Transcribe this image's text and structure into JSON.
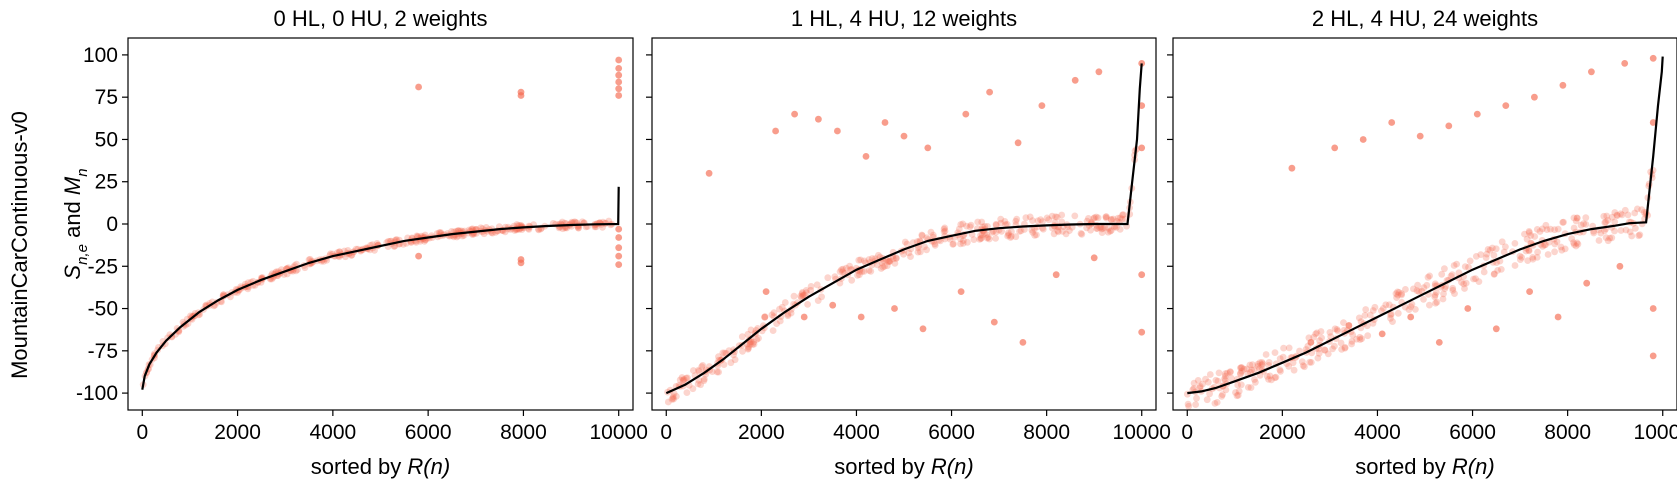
{
  "figure": {
    "row_label": "MountainCarContinuous-v0",
    "ylabel_parts": {
      "s": "S",
      "s_sub": "n,e",
      "and": " and ",
      "m": "M",
      "m_sub": "n"
    },
    "xlabel_prefix": "sorted by ",
    "xlabel_var": "R(n)"
  },
  "chart_data": [
    {
      "type": "scatter",
      "title": "0 HL, 0 HU, 2 weights",
      "xlim": [
        -300,
        10300
      ],
      "ylim": [
        -110,
        110
      ],
      "xticks": [
        0,
        2000,
        4000,
        6000,
        8000,
        10000
      ],
      "yticks": [
        -100,
        -75,
        -50,
        -25,
        0,
        25,
        50,
        75,
        100
      ],
      "xtick_labels": [
        "0",
        "2000",
        "4000",
        "6000",
        "8000",
        "10000"
      ],
      "ytick_labels": [
        "-100",
        "-75",
        "-50",
        "-25",
        "0",
        "25",
        "50",
        "75",
        "100"
      ],
      "series": [
        {
          "kind": "points",
          "color": "#f4694f",
          "outliers": [
            [
              5800,
              81
            ],
            [
              5800,
              -19
            ],
            [
              7950,
              78
            ],
            [
              7950,
              76
            ],
            [
              7950,
              -21
            ],
            [
              7950,
              -23
            ],
            [
              10000,
              97
            ],
            [
              10000,
              92
            ],
            [
              10000,
              88
            ],
            [
              10000,
              84
            ],
            [
              10000,
              80
            ],
            [
              10000,
              76
            ],
            [
              10000,
              -3
            ],
            [
              10000,
              -8
            ],
            [
              10000,
              -14
            ],
            [
              10000,
              -19
            ],
            [
              10000,
              -24
            ]
          ]
        },
        {
          "kind": "line",
          "color": "#000000",
          "points": [
            [
              0,
              -98
            ],
            [
              50,
              -90
            ],
            [
              150,
              -83
            ],
            [
              300,
              -76
            ],
            [
              500,
              -69
            ],
            [
              800,
              -61
            ],
            [
              1200,
              -52
            ],
            [
              1600,
              -45
            ],
            [
              2000,
              -39
            ],
            [
              2500,
              -33
            ],
            [
              3000,
              -28
            ],
            [
              3500,
              -23
            ],
            [
              4000,
              -19
            ],
            [
              4500,
              -16
            ],
            [
              5000,
              -13
            ],
            [
              5500,
              -10
            ],
            [
              6000,
              -8
            ],
            [
              6500,
              -6
            ],
            [
              7000,
              -4.5
            ],
            [
              7500,
              -3
            ],
            [
              8000,
              -2
            ],
            [
              8500,
              -1.2
            ],
            [
              9000,
              -0.6
            ],
            [
              9500,
              -0.2
            ],
            [
              9990,
              0
            ],
            [
              10000,
              22
            ]
          ]
        }
      ]
    },
    {
      "type": "scatter",
      "title": "1 HL, 4 HU, 12 weights",
      "xlim": [
        -300,
        10300
      ],
      "ylim": [
        -110,
        110
      ],
      "xticks": [
        0,
        2000,
        4000,
        6000,
        8000,
        10000
      ],
      "yticks": [
        -100,
        -75,
        -50,
        -25,
        0,
        25,
        50,
        75,
        100
      ],
      "xtick_labels": [
        "0",
        "2000",
        "4000",
        "6000",
        "8000",
        "10000"
      ],
      "ytick_labels": [
        "",
        "",
        "",
        "",
        "",
        "",
        "",
        "",
        ""
      ],
      "series": [
        {
          "kind": "points",
          "color": "#f4694f",
          "outliers": [
            [
              900,
              30
            ],
            [
              2300,
              55
            ],
            [
              2700,
              65
            ],
            [
              3200,
              62
            ],
            [
              3600,
              55
            ],
            [
              4200,
              40
            ],
            [
              4600,
              60
            ],
            [
              5000,
              52
            ],
            [
              5500,
              45
            ],
            [
              6300,
              65
            ],
            [
              6800,
              78
            ],
            [
              7400,
              48
            ],
            [
              7900,
              70
            ],
            [
              8600,
              85
            ],
            [
              9100,
              90
            ],
            [
              2100,
              -40
            ],
            [
              2900,
              -55
            ],
            [
              3500,
              -48
            ],
            [
              4100,
              -55
            ],
            [
              4800,
              -50
            ],
            [
              5400,
              -62
            ],
            [
              6200,
              -40
            ],
            [
              6900,
              -58
            ],
            [
              7500,
              -70
            ],
            [
              8200,
              -30
            ],
            [
              9000,
              -20
            ],
            [
              10000,
              95
            ],
            [
              10000,
              70
            ],
            [
              10000,
              45
            ],
            [
              10000,
              -30
            ],
            [
              10000,
              -64
            ]
          ]
        },
        {
          "kind": "line",
          "color": "#000000",
          "points": [
            [
              0,
              -100
            ],
            [
              400,
              -95
            ],
            [
              800,
              -88
            ],
            [
              1200,
              -80
            ],
            [
              1600,
              -71
            ],
            [
              2000,
              -62
            ],
            [
              2500,
              -52
            ],
            [
              3000,
              -43
            ],
            [
              3500,
              -35
            ],
            [
              4000,
              -27
            ],
            [
              4500,
              -21
            ],
            [
              5000,
              -15
            ],
            [
              5500,
              -10
            ],
            [
              6000,
              -7
            ],
            [
              6500,
              -4
            ],
            [
              7000,
              -2.5
            ],
            [
              7500,
              -1.5
            ],
            [
              8000,
              -0.8
            ],
            [
              8500,
              -0.3
            ],
            [
              9000,
              0
            ],
            [
              9700,
              0
            ],
            [
              9800,
              25
            ],
            [
              9900,
              50
            ],
            [
              9960,
              80
            ],
            [
              10000,
              95
            ]
          ]
        }
      ]
    },
    {
      "type": "scatter",
      "title": "2 HL, 4 HU, 24 weights",
      "xlim": [
        -300,
        10300
      ],
      "ylim": [
        -110,
        110
      ],
      "xticks": [
        0,
        2000,
        4000,
        6000,
        8000,
        10000
      ],
      "yticks": [
        -100,
        -75,
        -50,
        -25,
        0,
        25,
        50,
        75,
        100
      ],
      "xtick_labels": [
        "0",
        "2000",
        "4000",
        "6000",
        "8000",
        "10000"
      ],
      "ytick_labels": [
        "",
        "",
        "",
        "",
        "",
        "",
        "",
        "",
        ""
      ],
      "series": [
        {
          "kind": "points",
          "color": "#f4694f",
          "outliers": [
            [
              2200,
              33
            ],
            [
              3100,
              45
            ],
            [
              3700,
              50
            ],
            [
              4300,
              60
            ],
            [
              4900,
              52
            ],
            [
              5500,
              58
            ],
            [
              6100,
              65
            ],
            [
              6700,
              70
            ],
            [
              7300,
              75
            ],
            [
              7900,
              82
            ],
            [
              8500,
              90
            ],
            [
              9200,
              95
            ],
            [
              2600,
              -70
            ],
            [
              3400,
              -60
            ],
            [
              4100,
              -65
            ],
            [
              4700,
              -55
            ],
            [
              5300,
              -70
            ],
            [
              5900,
              -50
            ],
            [
              6500,
              -62
            ],
            [
              7200,
              -40
            ],
            [
              7800,
              -55
            ],
            [
              8400,
              -35
            ],
            [
              9100,
              -25
            ],
            [
              9800,
              98
            ],
            [
              9800,
              60
            ],
            [
              9800,
              -50
            ],
            [
              9800,
              -78
            ]
          ]
        },
        {
          "kind": "line",
          "color": "#000000",
          "points": [
            [
              0,
              -100
            ],
            [
              300,
              -99
            ],
            [
              600,
              -97
            ],
            [
              1000,
              -93
            ],
            [
              1500,
              -88
            ],
            [
              2000,
              -82
            ],
            [
              2500,
              -76
            ],
            [
              3000,
              -69
            ],
            [
              3500,
              -62
            ],
            [
              4000,
              -55
            ],
            [
              4500,
              -48
            ],
            [
              5000,
              -41
            ],
            [
              5500,
              -34
            ],
            [
              6000,
              -27
            ],
            [
              6500,
              -21
            ],
            [
              7000,
              -15
            ],
            [
              7500,
              -10
            ],
            [
              8000,
              -6
            ],
            [
              8500,
              -3
            ],
            [
              9000,
              -1
            ],
            [
              9300,
              0.5
            ],
            [
              9650,
              1
            ],
            [
              9800,
              40
            ],
            [
              9900,
              70
            ],
            [
              9980,
              90
            ],
            [
              10000,
              99
            ]
          ]
        }
      ]
    }
  ]
}
